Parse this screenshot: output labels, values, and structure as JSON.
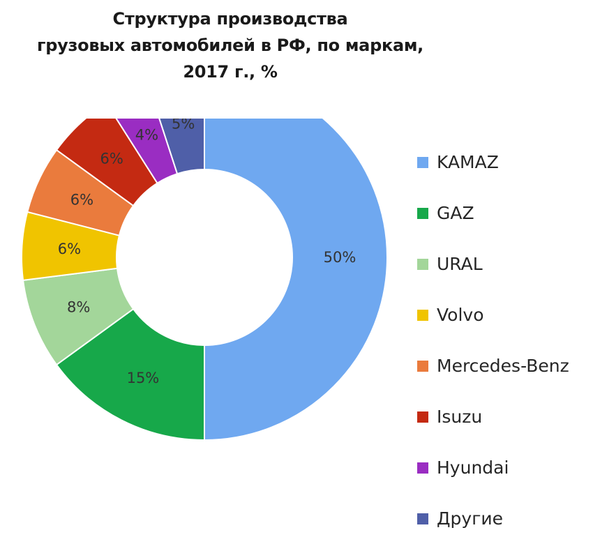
{
  "title_lines": [
    "Структура производства",
    "грузовых автомобилей в РФ,  по маркам,",
    "2017 г., %"
  ],
  "chart_data": {
    "type": "pie",
    "donut": true,
    "title": "Структура производства грузовых автомобилей в РФ,  по маркам, 2017 г., %",
    "legend_position": "right",
    "categories": [
      "KAMAZ",
      "GAZ",
      "URAL",
      "Volvo",
      "Mercedes-Benz",
      "Isuzu",
      "Hyundai",
      "Другие"
    ],
    "values": [
      50,
      15,
      8,
      6,
      6,
      6,
      4,
      5
    ],
    "data_labels": [
      "50%",
      "15%",
      "8%",
      "6%",
      "6%",
      "6%",
      "4%",
      "5%"
    ],
    "colors": [
      "#6fa8f0",
      "#17a84a",
      "#a3d69a",
      "#f0c400",
      "#ea7b3d",
      "#c42a12",
      "#9a2dc2",
      "#4f5fa8"
    ]
  }
}
